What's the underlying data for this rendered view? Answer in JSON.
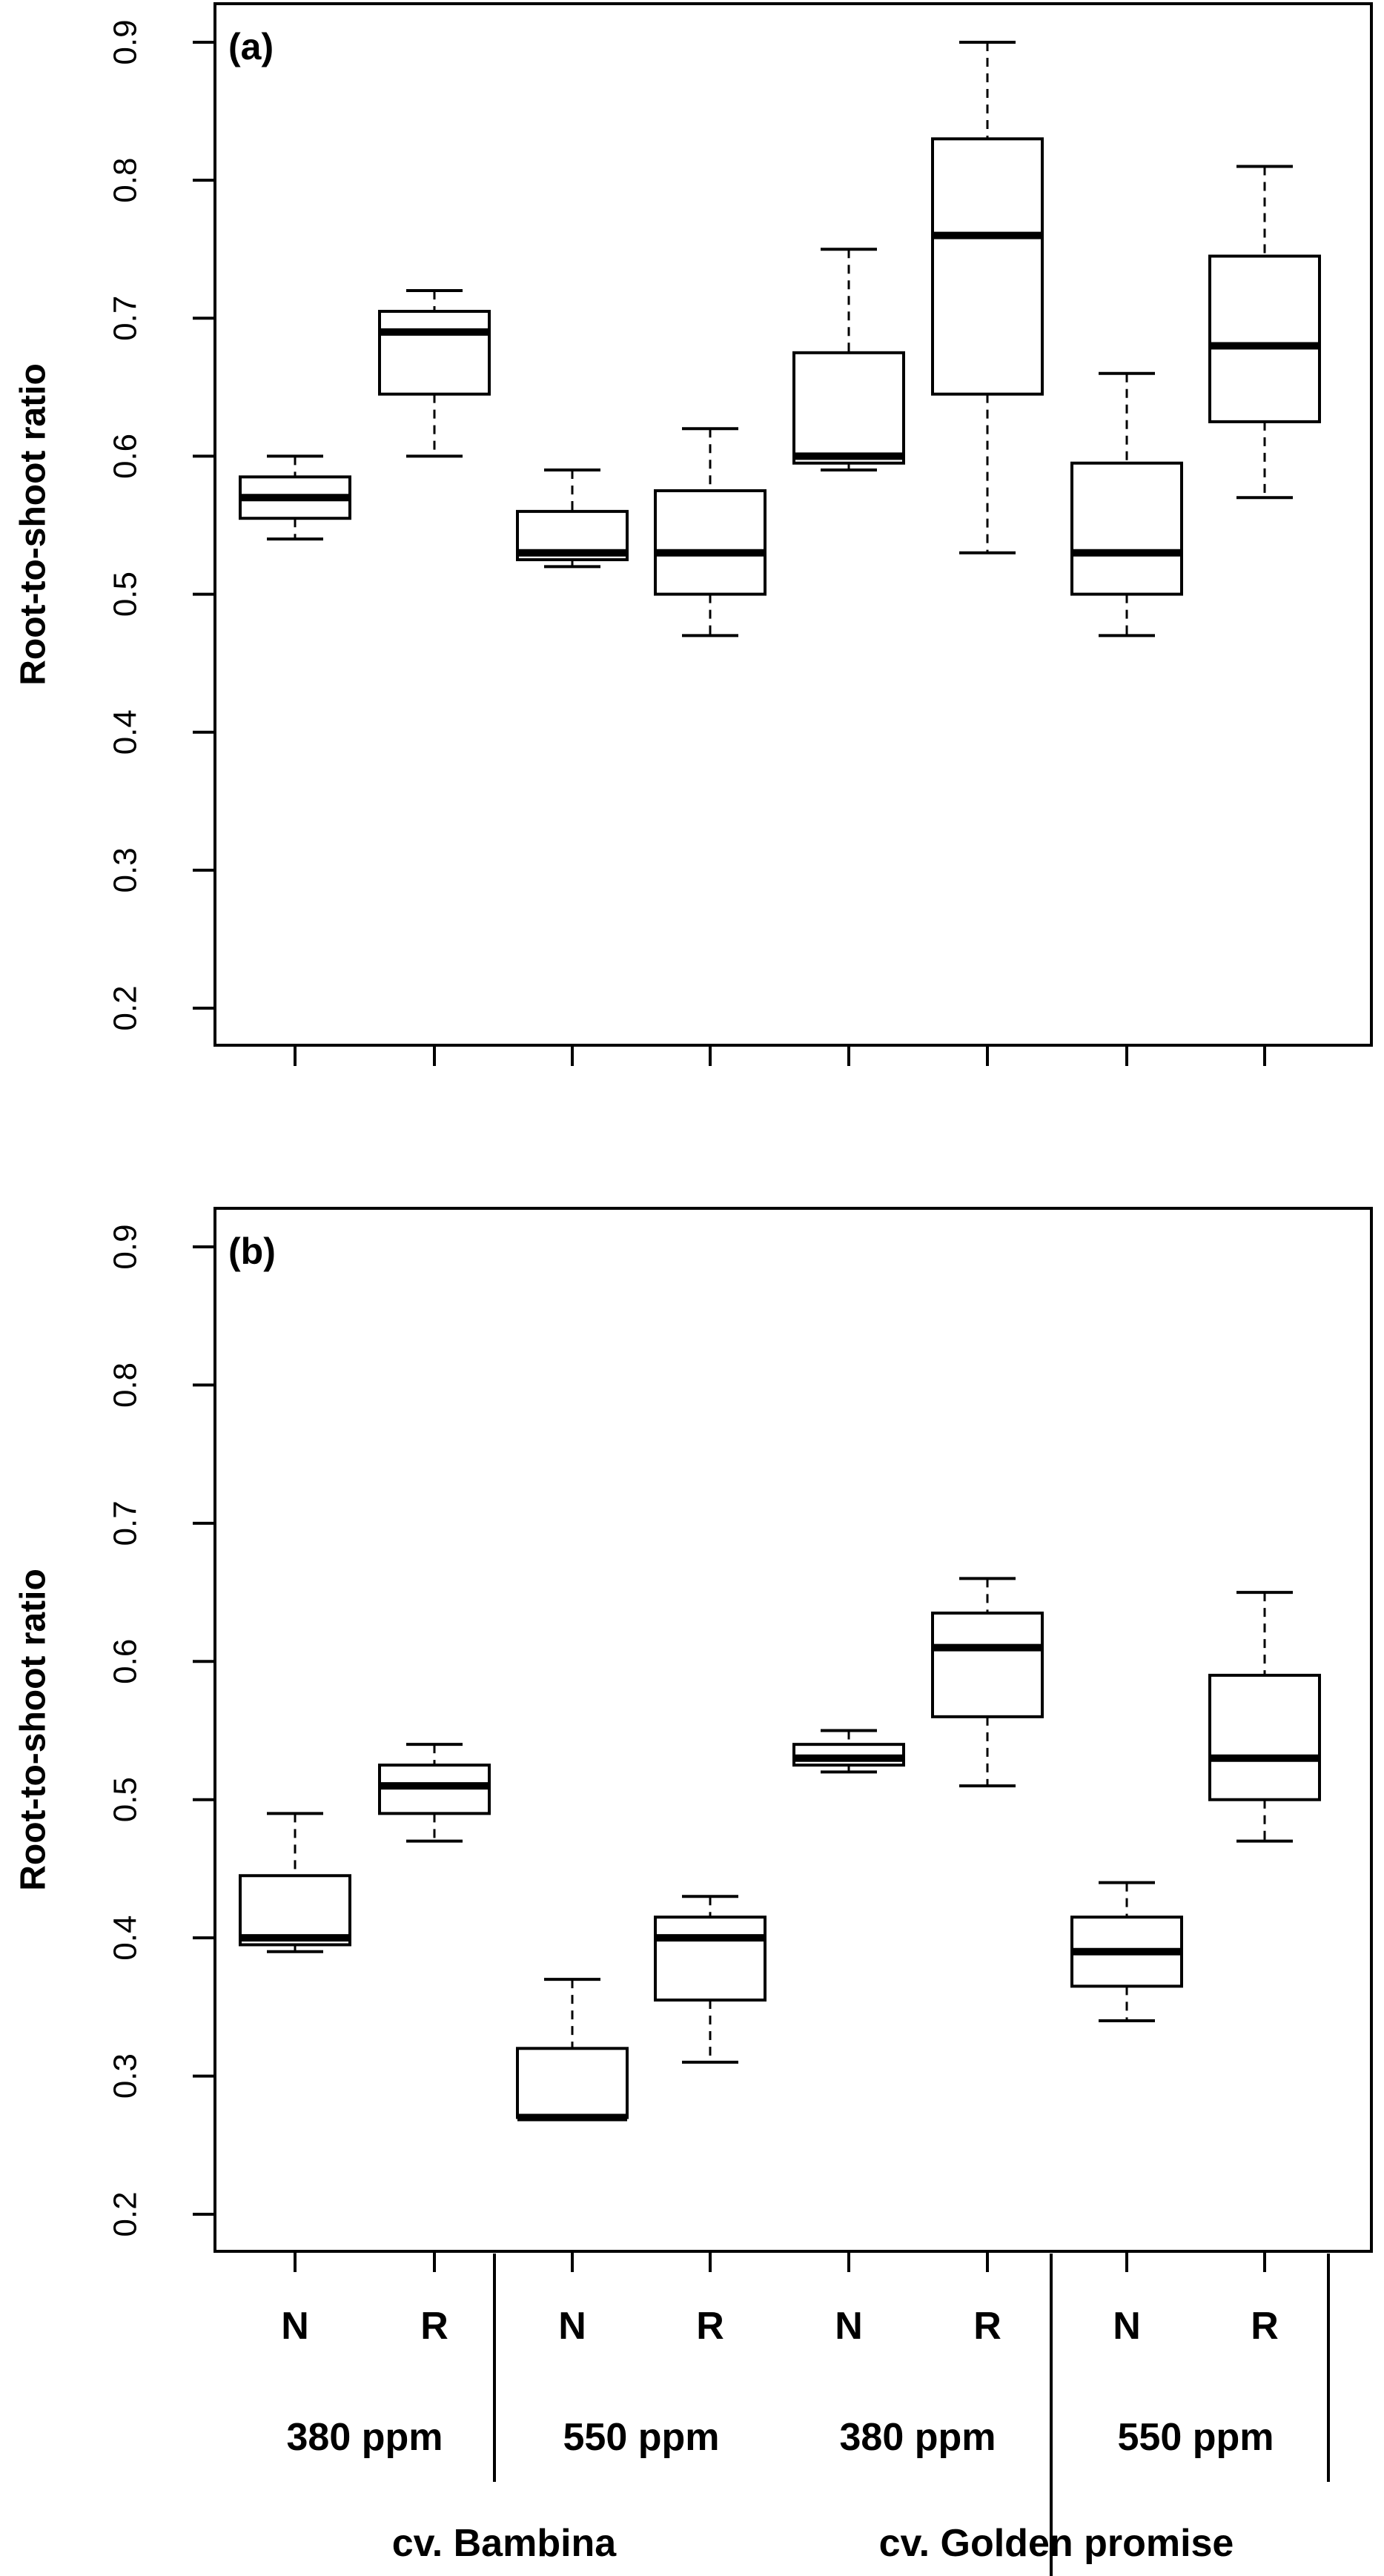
{
  "chart_data": [
    {
      "type": "box",
      "panel_label": "(a)",
      "ylabel": "Root-to-shoot ratio",
      "ylim": [
        0.2,
        0.9
      ],
      "yticks": [
        "0.2",
        "0.3",
        "0.4",
        "0.5",
        "0.6",
        "0.7",
        "0.8",
        "0.9"
      ],
      "grid": false,
      "boxes": [
        {
          "group": "380 ppm",
          "cultivar": "cv. Bambina",
          "treatment": "N",
          "min": 0.54,
          "q1": 0.555,
          "median": 0.57,
          "q3": 0.585,
          "max": 0.6
        },
        {
          "group": "380 ppm",
          "cultivar": "cv. Bambina",
          "treatment": "R",
          "min": 0.6,
          "q1": 0.645,
          "median": 0.69,
          "q3": 0.705,
          "max": 0.72
        },
        {
          "group": "550 ppm",
          "cultivar": "cv. Bambina",
          "treatment": "N",
          "min": 0.52,
          "q1": 0.525,
          "median": 0.53,
          "q3": 0.56,
          "max": 0.59
        },
        {
          "group": "550 ppm",
          "cultivar": "cv. Bambina",
          "treatment": "R",
          "min": 0.47,
          "q1": 0.5,
          "median": 0.53,
          "q3": 0.575,
          "max": 0.62
        },
        {
          "group": "380 ppm",
          "cultivar": "cv. Golden promise",
          "treatment": "N",
          "min": 0.59,
          "q1": 0.595,
          "median": 0.6,
          "q3": 0.675,
          "max": 0.75
        },
        {
          "group": "380 ppm",
          "cultivar": "cv. Golden promise",
          "treatment": "R",
          "min": 0.53,
          "q1": 0.645,
          "median": 0.76,
          "q3": 0.83,
          "max": 0.9
        },
        {
          "group": "550 ppm",
          "cultivar": "cv. Golden promise",
          "treatment": "N",
          "min": 0.47,
          "q1": 0.5,
          "median": 0.53,
          "q3": 0.595,
          "max": 0.66
        },
        {
          "group": "550 ppm",
          "cultivar": "cv. Golden promise",
          "treatment": "R",
          "min": 0.57,
          "q1": 0.625,
          "median": 0.68,
          "q3": 0.745,
          "max": 0.81
        }
      ]
    },
    {
      "type": "box",
      "panel_label": "(b)",
      "ylabel": "Root-to-shoot ratio",
      "ylim": [
        0.2,
        0.9
      ],
      "yticks": [
        "0.2",
        "0.3",
        "0.4",
        "0.5",
        "0.6",
        "0.7",
        "0.8",
        "0.9"
      ],
      "grid": false,
      "boxes": [
        {
          "group": "380 ppm",
          "cultivar": "cv. Bambina",
          "treatment": "N",
          "min": 0.39,
          "q1": 0.395,
          "median": 0.4,
          "q3": 0.445,
          "max": 0.49
        },
        {
          "group": "380 ppm",
          "cultivar": "cv. Bambina",
          "treatment": "R",
          "min": 0.47,
          "q1": 0.49,
          "median": 0.51,
          "q3": 0.525,
          "max": 0.54
        },
        {
          "group": "550 ppm",
          "cultivar": "cv. Bambina",
          "treatment": "N",
          "min": 0.27,
          "q1": 0.27,
          "median": 0.27,
          "q3": 0.32,
          "max": 0.37
        },
        {
          "group": "550 ppm",
          "cultivar": "cv. Bambina",
          "treatment": "R",
          "min": 0.31,
          "q1": 0.355,
          "median": 0.4,
          "q3": 0.415,
          "max": 0.43
        },
        {
          "group": "380 ppm",
          "cultivar": "cv. Golden promise",
          "treatment": "N",
          "min": 0.52,
          "q1": 0.525,
          "median": 0.53,
          "q3": 0.54,
          "max": 0.55
        },
        {
          "group": "380 ppm",
          "cultivar": "cv. Golden promise",
          "treatment": "R",
          "min": 0.51,
          "q1": 0.56,
          "median": 0.61,
          "q3": 0.635,
          "max": 0.66
        },
        {
          "group": "550 ppm",
          "cultivar": "cv. Golden promise",
          "treatment": "N",
          "min": 0.34,
          "q1": 0.365,
          "median": 0.39,
          "q3": 0.415,
          "max": 0.44
        },
        {
          "group": "550 ppm",
          "cultivar": "cv. Golden promise",
          "treatment": "R",
          "min": 0.47,
          "q1": 0.5,
          "median": 0.53,
          "q3": 0.59,
          "max": 0.65
        }
      ]
    }
  ],
  "x_axis": {
    "categories": [
      "N",
      "R",
      "N",
      "R",
      "N",
      "R",
      "N",
      "R"
    ],
    "groups": [
      "380 ppm",
      "550 ppm",
      "380 ppm",
      "550 ppm"
    ],
    "cultivars": [
      "cv. Bambina",
      "cv. Golden promise"
    ]
  },
  "colors": {
    "box_fill": "#ffffff",
    "stroke": "#000000",
    "background": "#ffffff"
  }
}
